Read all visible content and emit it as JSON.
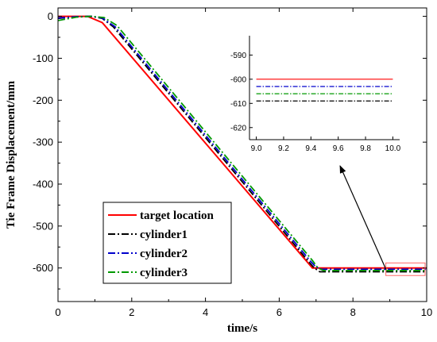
{
  "chart_data": {
    "type": "line",
    "title": "",
    "xlabel": "time/s",
    "ylabel": "Tie Frame Displacement/mm",
    "xlim": [
      0,
      10
    ],
    "ylim": [
      -680,
      20
    ],
    "xticks": [
      0,
      2,
      4,
      6,
      8,
      10
    ],
    "yticks": [
      0,
      -100,
      -200,
      -300,
      -400,
      -500,
      -600
    ],
    "grid": false,
    "legend_position": "bottom-left",
    "series": [
      {
        "name": "target location",
        "color": "#ff0000",
        "dash": "solid",
        "x": [
          0,
          0.8,
          1.2,
          6.9,
          10
        ],
        "y": [
          0,
          0,
          -15,
          -600,
          -600
        ]
      },
      {
        "name": "cylinder1",
        "color": "#000000",
        "dash": "dashdot",
        "x": [
          0,
          0.5,
          0.9,
          1.2,
          1.5,
          6.8,
          6.95,
          7.1,
          10
        ],
        "y": [
          -5,
          -1,
          0,
          -5,
          -25,
          -585,
          -600,
          -609,
          -609
        ]
      },
      {
        "name": "cylinder2",
        "color": "#0000cc",
        "dash": "dashdot",
        "x": [
          0,
          0.5,
          0.9,
          1.2,
          1.55,
          6.85,
          7.0,
          7.15,
          10
        ],
        "y": [
          -4,
          -1,
          0,
          -4,
          -25,
          -584,
          -598,
          -603,
          -603
        ]
      },
      {
        "name": "cylinder3",
        "color": "#009900",
        "dash": "dashdot",
        "x": [
          0,
          0.5,
          0.9,
          1.25,
          1.6,
          6.9,
          7.05,
          7.2,
          10
        ],
        "y": [
          -10,
          -2,
          0,
          -3,
          -22,
          -582,
          -600,
          -606,
          -606
        ]
      }
    ],
    "inset": {
      "xlim": [
        8.95,
        10.05
      ],
      "ylim": [
        -625,
        -582
      ],
      "xticks": [
        9.0,
        9.2,
        9.4,
        9.6,
        9.8,
        10.0
      ],
      "xtick_labels": [
        "9.0",
        "9.2",
        "9.4",
        "9.6",
        "9.8",
        "10.0"
      ],
      "yticks": [
        -590,
        -600,
        -610,
        -620
      ],
      "ytick_labels": [
        "-590",
        "-600",
        "-610",
        "-620"
      ],
      "x_range": [
        9.0,
        10.0
      ],
      "lines": [
        {
          "series": "target location",
          "y": -600
        },
        {
          "series": "cylinder2",
          "y": -603
        },
        {
          "series": "cylinder3",
          "y": -606
        },
        {
          "series": "cylinder1",
          "y": -609
        }
      ]
    },
    "highlight_box": {
      "x": [
        9.0,
        10.0
      ],
      "y": [
        -588,
        -618
      ],
      "color": "#ff6666"
    },
    "arrow_color": "#000000"
  }
}
